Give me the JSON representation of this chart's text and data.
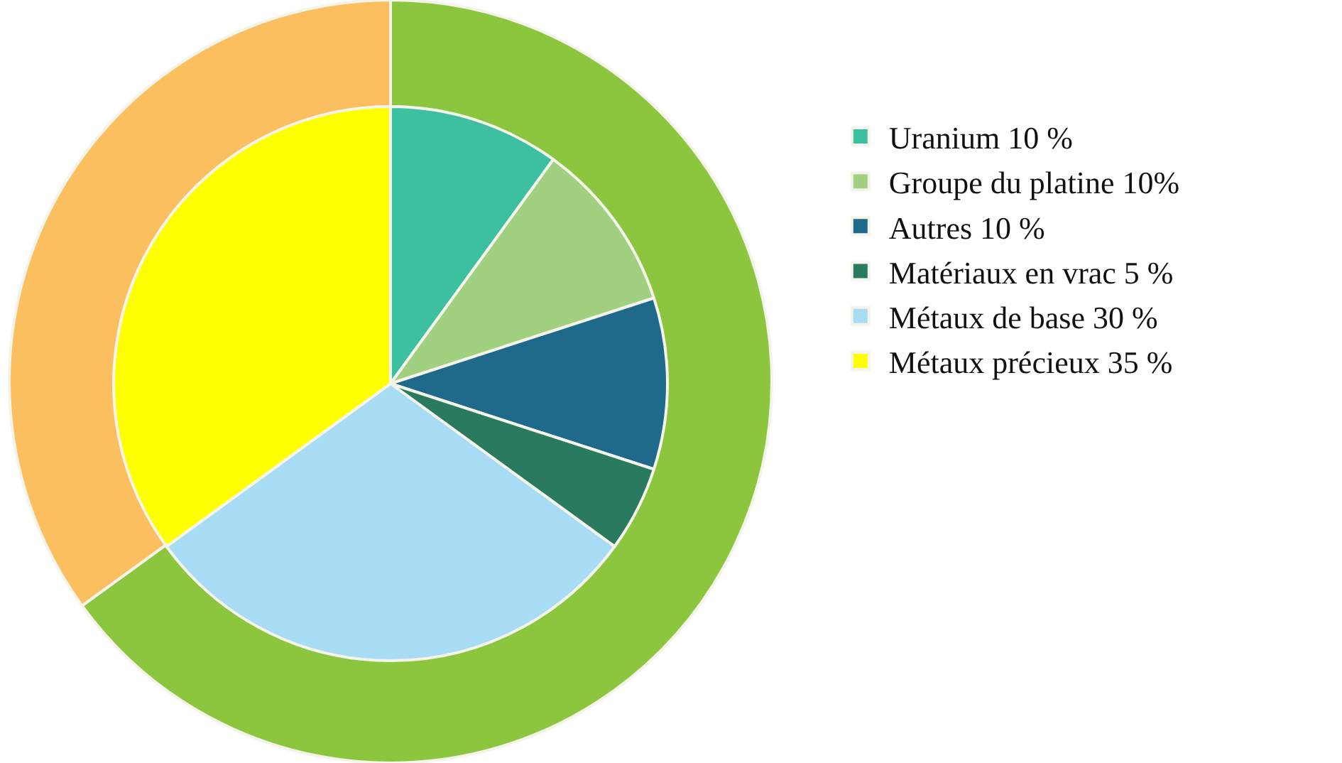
{
  "chart_data": [
    {
      "type": "donut",
      "categories": [
        null,
        null
      ],
      "values": [
        65,
        35
      ],
      "colors": [
        "#8cc63f",
        "#fbbf60"
      ],
      "legend": false
    },
    {
      "type": "pie",
      "categories": [
        "Uranium 10 %",
        "Groupe du platine 10%",
        "Autres 10 %",
        "Matériaux en vrac 5 %",
        "Métaux de base 30 %",
        "Métaux précieux 35 %"
      ],
      "values": [
        10,
        10,
        10,
        5,
        30,
        35
      ],
      "colors": [
        "#3cc0a0",
        "#a0d080",
        "#1f6a8a",
        "#2a7a60",
        "#a8dcf5",
        "#ffff00"
      ],
      "legend": "right"
    }
  ]
}
